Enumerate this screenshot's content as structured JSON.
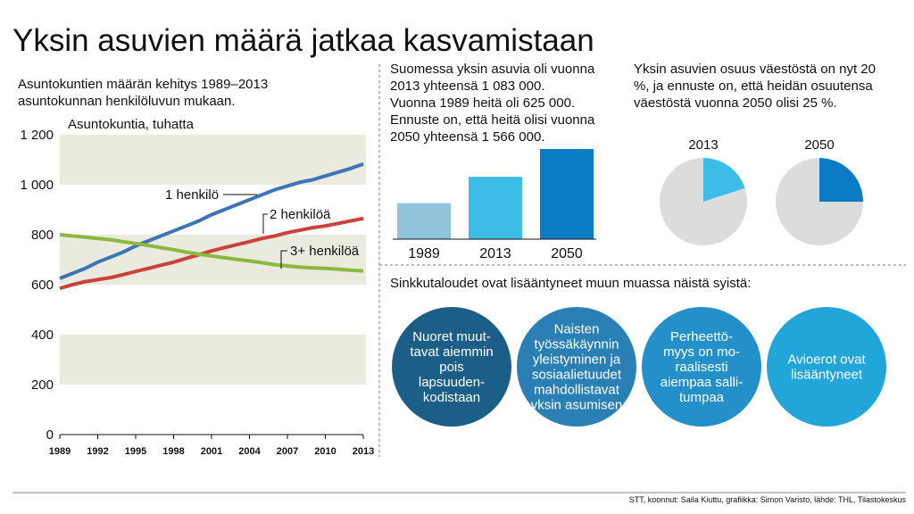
{
  "title": "Yksin asuvien määrä jatkaa kasvamistaan",
  "pie_note": {
    "lines": [
      "Yksin asuvien osuus väestöstä on nyt 20",
      "%, ja ennuste on, että heidän osuutensa",
      "väestöstä vuonna 2050 olisi 25 %."
    ]
  },
  "reasons": {
    "heading": "Sinkkutaloudet ovat lisääntyneet muun muassa näistä syistä:",
    "circles": [
      {
        "lines": [
          "Nuoret muut-",
          "tavat aiemmin",
          "pois",
          "lapsuuden-",
          "kodistaan"
        ],
        "color": "#1b5f88"
      },
      {
        "lines": [
          "Naisten",
          "työssäkäynnin",
          "yleistyminen ja",
          "sosiaalietuudet",
          "mahdollistavat",
          "yksin asumisen"
        ],
        "color": "#2a7fb4"
      },
      {
        "lines": [
          "Perheettö-",
          "myys on mo-",
          "raalisesti",
          "aiempaa salli-",
          "tumpaa"
        ],
        "color": "#2390c9"
      },
      {
        "lines": [
          "Avioerot ovat",
          "lisääntyneet"
        ],
        "color": "#22a6da"
      }
    ]
  },
  "source": "STT, koonnut: Saila Kiuttu, grafiikka: Simon Varisto, lähde: THL, Tilastokeskus",
  "chart_data": [
    {
      "type": "line",
      "subtitle": [
        "Asuntokuntien määrän kehitys 1989–2013",
        "asuntokunnan henkilöluvun mukaan."
      ],
      "y_label": "Asuntokuntia, tuhatta",
      "x": [
        1989,
        1990,
        1991,
        1992,
        1993,
        1994,
        1995,
        1996,
        1997,
        1998,
        1999,
        2000,
        2001,
        2002,
        2003,
        2004,
        2005,
        2006,
        2007,
        2008,
        2009,
        2010,
        2011,
        2012,
        2013
      ],
      "xlim": [
        1989,
        2013
      ],
      "xticks": [
        1989,
        1992,
        1995,
        1998,
        2001,
        2004,
        2007,
        2010,
        2013
      ],
      "ylim": [
        0,
        1200
      ],
      "yticks": [
        0,
        200,
        400,
        600,
        800,
        {
          "value": 1000,
          "label": "1 000"
        },
        {
          "value": 1200,
          "label": "1 200"
        }
      ],
      "series": [
        {
          "name": "1 henkilö",
          "color": "#3b74b9",
          "values": [
            625,
            645,
            665,
            690,
            710,
            730,
            755,
            775,
            795,
            815,
            835,
            855,
            880,
            900,
            920,
            940,
            960,
            980,
            995,
            1010,
            1020,
            1035,
            1050,
            1065,
            1083
          ]
        },
        {
          "name": "2 henkilöä",
          "color": "#c9433a",
          "values": [
            585,
            600,
            612,
            620,
            628,
            640,
            653,
            665,
            678,
            690,
            705,
            720,
            735,
            748,
            760,
            772,
            785,
            795,
            808,
            818,
            828,
            835,
            845,
            855,
            865
          ]
        },
        {
          "name": "3+ henkilöä",
          "color": "#8bb83f",
          "values": [
            800,
            795,
            790,
            785,
            780,
            772,
            765,
            757,
            748,
            740,
            730,
            722,
            715,
            708,
            701,
            695,
            688,
            680,
            675,
            670,
            667,
            665,
            662,
            658,
            655
          ]
        }
      ]
    },
    {
      "type": "bar",
      "note": [
        "Suomessa yksin asuvia oli vuonna",
        "2013 yhteensä 1 083 000.",
        "Vuonna 1989 heitä oli 625 000.",
        "Ennuste on, että heitä olisi vuonna",
        "2050 yhteensä 1 566 000."
      ],
      "categories": [
        "1989",
        "2013",
        "2050"
      ],
      "values": [
        625,
        1083,
        1566
      ],
      "colors": [
        "#8fc4dc",
        "#3cbde8",
        "#0c7bc5"
      ]
    },
    {
      "type": "pie",
      "title": "2013",
      "values": [
        20,
        80
      ],
      "colors": [
        "#3cbde8",
        "#dcdcdc"
      ]
    },
    {
      "type": "pie",
      "title": "2050",
      "values": [
        25,
        75
      ],
      "colors": [
        "#0c7bc5",
        "#dcdcdc"
      ]
    }
  ]
}
